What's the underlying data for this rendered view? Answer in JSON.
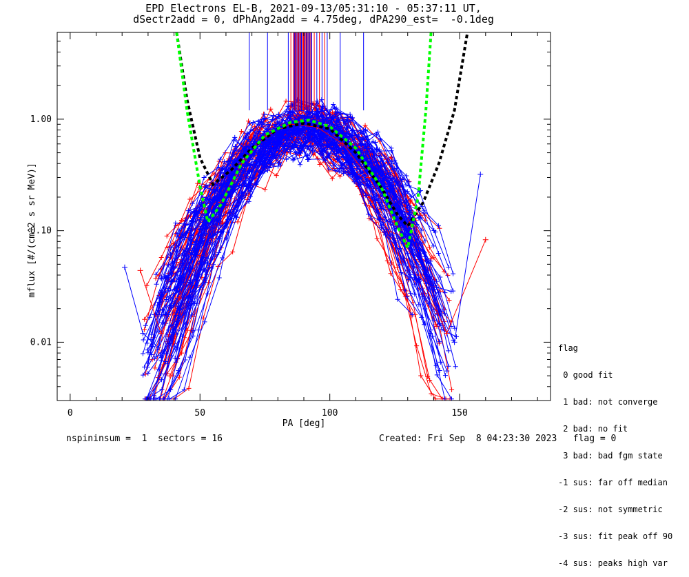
{
  "title_line1": "EPD Electrons EL-B, 2021-09-13/05:31:10 - 05:37:11 UT,",
  "title_line2": "dSectr2add = 0, dPhAng2add = 4.75deg, dPA290_est=  -0.1deg",
  "footer_left": "nspininsum =  1  sectors = 16",
  "footer_right": "Created: Fri Sep  8 04:23:30 2023   flag = 0",
  "legend": {
    "heading": "flag",
    "items": [
      " 0 good fit",
      " 1 bad: not converge",
      " 2 bad: no fit",
      " 3 bad: bad fgm state",
      "-1 sus: far off median",
      "-2 sus: not symmetric",
      "-3 sus: fit peak off 90",
      "-4 sus: peaks high var"
    ]
  },
  "colors": {
    "blue": "#0000ff",
    "red": "#ff0000",
    "green": "#00ff00",
    "black": "#000000"
  },
  "chart_data": {
    "type": "line",
    "xlabel": "PA [deg]",
    "ylabel": "mflux [#/(cm^2 s sr MeV)]",
    "xlim": [
      -5,
      185
    ],
    "ylim": [
      0.003,
      6.0
    ],
    "ylog": true,
    "xticks": [
      0,
      50,
      100,
      150
    ],
    "yticks": [
      0.01,
      0.1,
      1.0
    ],
    "ytick_labels": [
      "0.01",
      "0.10",
      "1.00"
    ],
    "series": [
      {
        "color": "#0000ff",
        "style": "solid-with-plus-markers",
        "points_sample": [
          [
            21,
            0.047
          ],
          [
            28,
            0.012
          ],
          [
            34,
            0.009
          ],
          [
            42,
            0.02
          ],
          [
            48,
            0.04
          ],
          [
            55,
            0.12
          ],
          [
            62,
            0.3
          ],
          [
            70,
            0.55
          ],
          [
            80,
            0.8
          ],
          [
            90,
            0.9
          ],
          [
            100,
            0.82
          ],
          [
            110,
            0.5
          ],
          [
            120,
            0.22
          ],
          [
            128,
            0.09
          ],
          [
            138,
            0.03
          ],
          [
            148,
            0.01
          ],
          [
            158,
            0.32
          ]
        ]
      },
      {
        "color": "#ff0000",
        "style": "solid-with-plus-markers",
        "points_sample": [
          [
            27,
            0.044
          ],
          [
            35,
            0.012
          ],
          [
            42,
            0.025
          ],
          [
            50,
            0.06
          ],
          [
            58,
            0.18
          ],
          [
            66,
            0.4
          ],
          [
            75,
            0.7
          ],
          [
            85,
            0.9
          ],
          [
            95,
            0.85
          ],
          [
            105,
            0.6
          ],
          [
            115,
            0.3
          ],
          [
            125,
            0.12
          ],
          [
            135,
            0.04
          ],
          [
            145,
            0.012
          ],
          [
            160,
            0.083
          ]
        ]
      },
      {
        "name": "fit",
        "color": "#00ff00",
        "style": "dashed",
        "points_sample": [
          [
            41,
            6.0
          ],
          [
            45,
            1.2
          ],
          [
            50,
            0.25
          ],
          [
            53,
            0.12
          ],
          [
            58,
            0.17
          ],
          [
            66,
            0.4
          ],
          [
            75,
            0.72
          ],
          [
            85,
            0.94
          ],
          [
            92,
            0.98
          ],
          [
            100,
            0.86
          ],
          [
            110,
            0.55
          ],
          [
            120,
            0.24
          ],
          [
            126,
            0.11
          ],
          [
            130,
            0.07
          ],
          [
            134,
            0.2
          ],
          [
            137,
            1.2
          ],
          [
            139,
            6.0
          ]
        ]
      },
      {
        "name": "fit",
        "color": "#000000",
        "style": "dashed",
        "points_sample": [
          [
            41,
            6.0
          ],
          [
            45,
            1.5
          ],
          [
            50,
            0.45
          ],
          [
            55,
            0.26
          ],
          [
            62,
            0.35
          ],
          [
            70,
            0.55
          ],
          [
            80,
            0.82
          ],
          [
            90,
            0.92
          ],
          [
            100,
            0.82
          ],
          [
            110,
            0.5
          ],
          [
            120,
            0.24
          ],
          [
            126,
            0.14
          ],
          [
            130,
            0.11
          ],
          [
            136,
            0.18
          ],
          [
            142,
            0.4
          ],
          [
            148,
            1.2
          ],
          [
            153,
            6.0
          ]
        ]
      }
    ],
    "vertical_markers": {
      "y_range": [
        1.2,
        6.0
      ],
      "blue_x": [
        69,
        76,
        84,
        86,
        87,
        88,
        89,
        90,
        91,
        92,
        93,
        95,
        97,
        99,
        104,
        113
      ],
      "red_x": [
        85,
        86.5,
        88,
        90,
        91,
        92,
        94,
        96,
        98
      ]
    }
  }
}
